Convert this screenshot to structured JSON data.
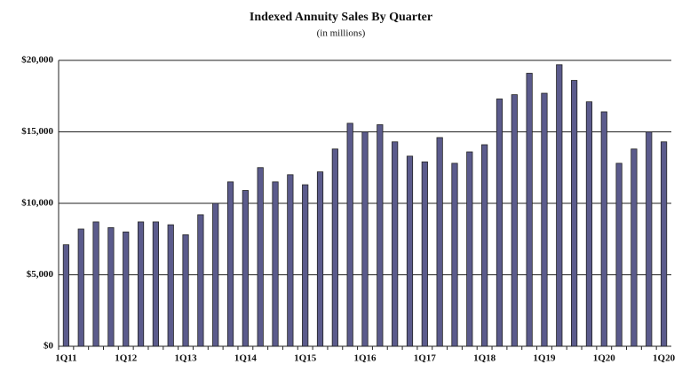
{
  "chart_data": {
    "type": "bar",
    "title": "Indexed Annuity  Sales By Quarter",
    "subtitle": "(in millions)",
    "categories": [
      "1Q11",
      null,
      null,
      null,
      "1Q12",
      null,
      null,
      null,
      "1Q13",
      null,
      null,
      null,
      "1Q14",
      null,
      null,
      null,
      "1Q15",
      null,
      null,
      null,
      "1Q16",
      null,
      null,
      null,
      "1Q17",
      null,
      null,
      null,
      "1Q18",
      null,
      null,
      null,
      "1Q19",
      null,
      null,
      null,
      "1Q20",
      null,
      null,
      null,
      "1Q20"
    ],
    "values": [
      7100,
      8200,
      8700,
      8300,
      8000,
      8700,
      8700,
      8500,
      7800,
      9200,
      10000,
      11500,
      10900,
      12500,
      11500,
      12000,
      11300,
      12200,
      13800,
      15600,
      15000,
      15500,
      14300,
      13300,
      12900,
      14600,
      12800,
      13600,
      14100,
      17300,
      17600,
      19100,
      17700,
      19700,
      18600,
      17100,
      16400,
      12800,
      13800,
      15000,
      14300
    ],
    "color": "#5b5b8c",
    "ylim": [
      0,
      20000
    ],
    "yticks": [
      {
        "value": 0,
        "label": "$0"
      },
      {
        "value": 5000,
        "label": "$5,000"
      },
      {
        "value": 10000,
        "label": "$10,000"
      },
      {
        "value": 15000,
        "label": "$15,000"
      },
      {
        "value": 20000,
        "label": "$20,000"
      }
    ],
    "grid": true
  }
}
